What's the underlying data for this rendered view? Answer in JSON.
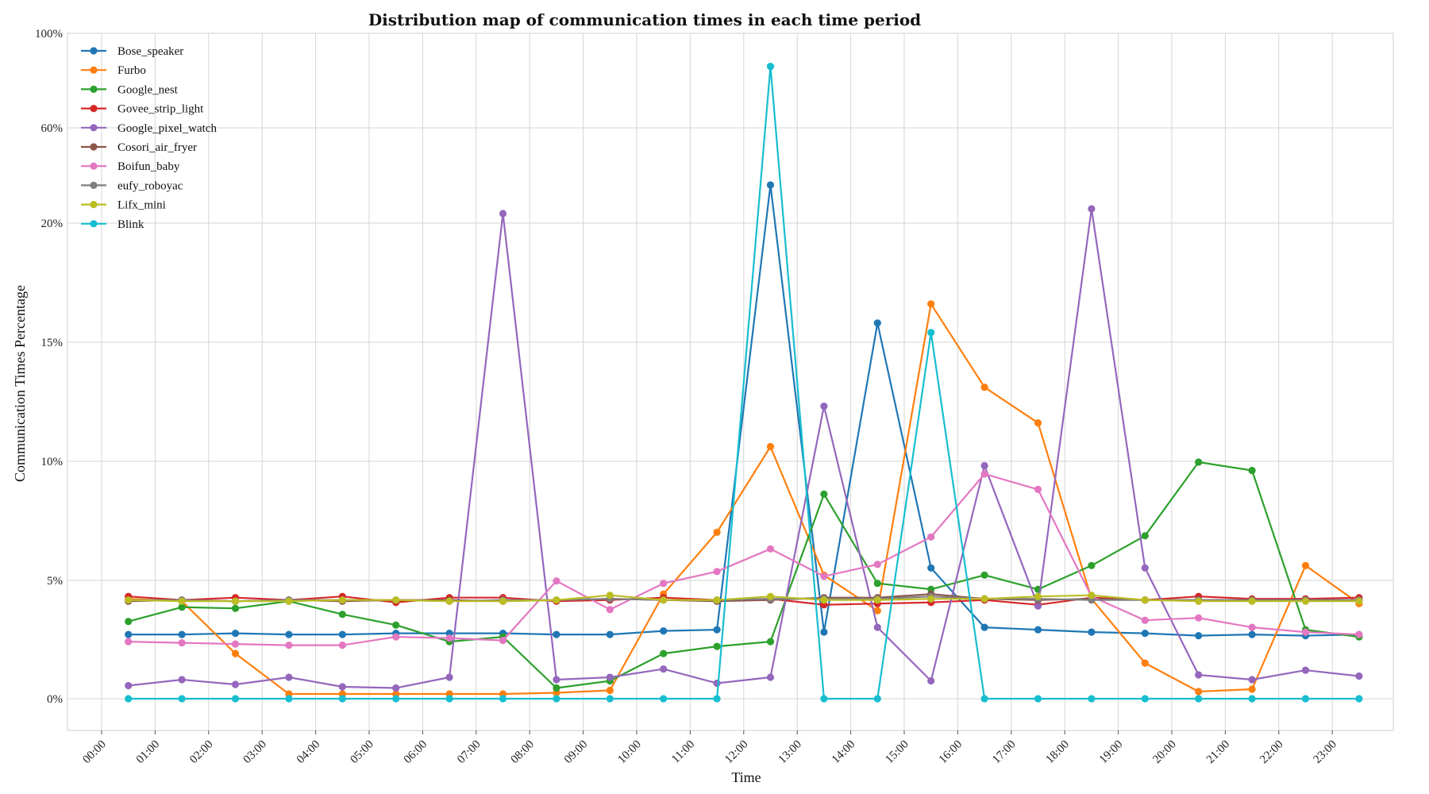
{
  "chart_data": {
    "type": "line",
    "title": "Distribution map of communication times in each time period",
    "xlabel": "Time",
    "ylabel": "Communication Times Percentage",
    "grid": true,
    "legend_position": "top-left",
    "x_ticks": [
      "00:00",
      "01:00",
      "02:00",
      "03:00",
      "04:00",
      "05:00",
      "06:00",
      "07:00",
      "08:00",
      "09:00",
      "10:00",
      "11:00",
      "12:00",
      "13:00",
      "14:00",
      "15:00",
      "16:00",
      "17:00",
      "18:00",
      "19:00",
      "20:00",
      "21:00",
      "22:00",
      "23:00"
    ],
    "x": [
      0.5,
      1.5,
      2.5,
      3.5,
      4.5,
      5.5,
      6.5,
      7.5,
      8.5,
      9.5,
      10.5,
      11.5,
      12.5,
      13.5,
      14.5,
      15.5,
      16.5,
      17.5,
      18.5,
      19.5,
      20.5,
      21.5,
      22.5,
      23.5
    ],
    "y_tick_labels": [
      "0%",
      "5%",
      "10%",
      "15%",
      "20%",
      "60%",
      "100%"
    ],
    "series": [
      {
        "name": "Bose_speaker",
        "color": "#1f77b4",
        "values": [
          2.7,
          2.7,
          2.75,
          2.7,
          2.7,
          2.75,
          2.75,
          2.75,
          2.7,
          2.7,
          2.85,
          2.9,
          36,
          2.8,
          15.8,
          5.5,
          3.0,
          2.9,
          2.8,
          2.75,
          2.65,
          2.7,
          2.65,
          2.7
        ]
      },
      {
        "name": "Furbo",
        "color": "#ff7f0e",
        "values": [
          4.2,
          4.1,
          1.9,
          0.2,
          0.2,
          0.2,
          0.2,
          0.2,
          0.25,
          0.35,
          4.4,
          7.0,
          10.6,
          5.2,
          3.7,
          16.6,
          13.1,
          11.6,
          4.2,
          1.5,
          0.3,
          0.4,
          5.6,
          4.0
        ]
      },
      {
        "name": "Google_nest",
        "color": "#2ca02c",
        "values": [
          3.25,
          3.85,
          3.8,
          4.1,
          3.55,
          3.1,
          2.4,
          2.6,
          0.45,
          0.75,
          1.9,
          2.2,
          2.4,
          8.6,
          4.85,
          4.6,
          5.2,
          4.6,
          5.6,
          6.85,
          9.95,
          9.6,
          2.9,
          2.6
        ]
      },
      {
        "name": "Govee_strip_light",
        "color": "#d62728",
        "values": [
          4.3,
          4.15,
          4.25,
          4.15,
          4.3,
          4.05,
          4.25,
          4.25,
          4.1,
          4.15,
          4.25,
          4.15,
          4.2,
          3.95,
          4.0,
          4.05,
          4.15,
          3.95,
          4.25,
          4.15,
          4.3,
          4.2,
          4.2,
          4.25
        ]
      },
      {
        "name": "Google_pixel_watch",
        "color": "#9467bd",
        "values": [
          0.55,
          0.8,
          0.6,
          0.9,
          0.5,
          0.45,
          0.9,
          24,
          0.8,
          0.9,
          1.25,
          0.65,
          0.9,
          12.3,
          3.0,
          0.75,
          9.8,
          3.9,
          26,
          5.5,
          1.0,
          0.8,
          1.2,
          0.95
        ]
      },
      {
        "name": "Cosori_air_fryer",
        "color": "#8c564b",
        "values": [
          4.1,
          4.15,
          4.1,
          4.15,
          4.1,
          4.15,
          4.15,
          4.1,
          4.15,
          4.2,
          4.15,
          4.1,
          4.15,
          4.25,
          4.25,
          4.4,
          4.2,
          4.15,
          4.2,
          4.15,
          4.15,
          4.15,
          4.15,
          4.15
        ]
      },
      {
        "name": "Boifun_baby",
        "color": "#e377c2",
        "values": [
          2.4,
          2.35,
          2.3,
          2.25,
          2.25,
          2.6,
          2.55,
          2.45,
          4.95,
          3.75,
          4.85,
          5.35,
          6.3,
          5.15,
          5.65,
          6.8,
          9.45,
          8.8,
          4.3,
          3.3,
          3.4,
          3.0,
          2.8,
          2.7
        ]
      },
      {
        "name": "eufy_roboyac",
        "color": "#7f7f7f",
        "values": [
          4.15,
          4.15,
          4.1,
          4.15,
          4.15,
          4.15,
          4.1,
          4.15,
          4.15,
          4.2,
          4.15,
          4.15,
          4.2,
          4.2,
          4.2,
          4.3,
          4.2,
          4.2,
          4.15,
          4.15,
          4.15,
          4.15,
          4.15,
          4.15
        ]
      },
      {
        "name": "Lifx_mini",
        "color": "#bcbd22",
        "values": [
          4.15,
          4.1,
          4.1,
          4.1,
          4.15,
          4.15,
          4.1,
          4.1,
          4.15,
          4.35,
          4.15,
          4.15,
          4.3,
          4.15,
          4.15,
          4.2,
          4.2,
          4.3,
          4.35,
          4.15,
          4.1,
          4.1,
          4.1,
          4.1
        ]
      },
      {
        "name": "Blink",
        "color": "#17becf",
        "values": [
          0,
          0,
          0,
          0,
          0,
          0,
          0,
          0,
          0,
          0,
          0,
          0,
          86,
          0,
          0,
          15.4,
          0,
          0,
          0,
          0,
          0,
          0,
          0,
          0
        ]
      }
    ]
  }
}
